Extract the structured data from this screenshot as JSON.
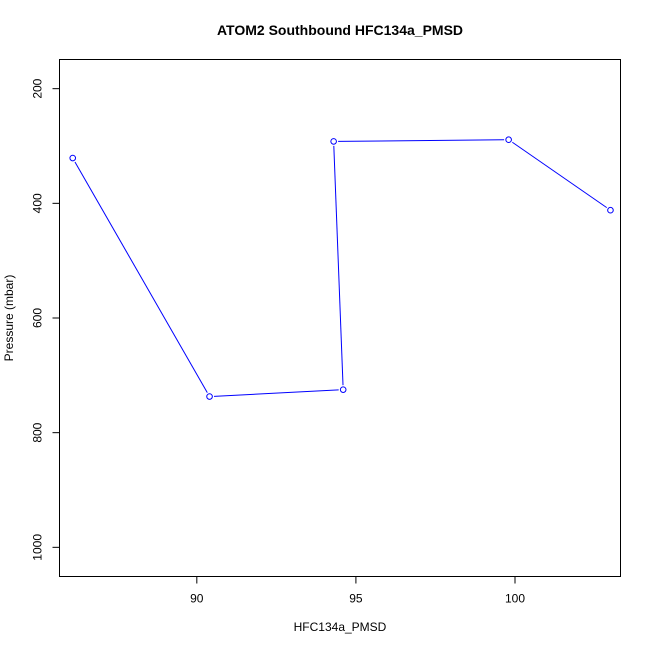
{
  "chart_data": {
    "type": "line",
    "title": "ATOM2 Southbound HFC134a_PMSD",
    "xlabel": "HFC134a_PMSD",
    "ylabel": "Pressure (mbar)",
    "xlim": [
      85.7,
      103.3
    ],
    "ylim": [
      1050,
      150
    ],
    "x_ticks": [
      90,
      95,
      100
    ],
    "y_ticks": [
      200,
      400,
      600,
      800,
      1000
    ],
    "y_reversed": true,
    "grid": false,
    "series": [
      {
        "color": "#0000ff",
        "marker": "open-circle",
        "points": [
          {
            "x": 86.1,
            "y": 321
          },
          {
            "x": 90.4,
            "y": 737
          },
          {
            "x": 94.6,
            "y": 725
          },
          {
            "x": 94.3,
            "y": 292
          },
          {
            "x": 99.8,
            "y": 289
          },
          {
            "x": 103.0,
            "y": 412
          }
        ]
      }
    ]
  }
}
